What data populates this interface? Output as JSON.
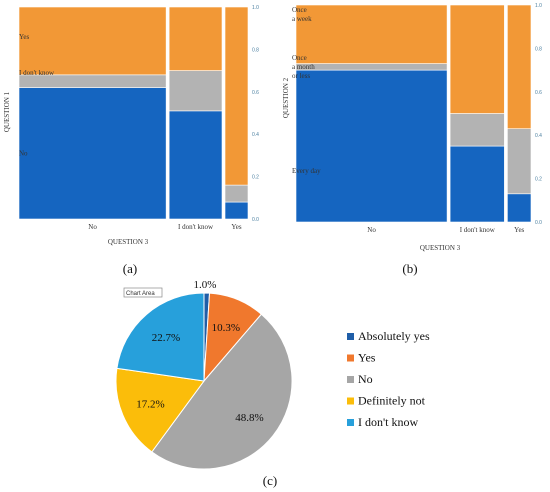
{
  "chart_data": [
    {
      "type": "mosaic",
      "panel_label": "(a)",
      "xlabel": "QUESTION 3",
      "ylabel": "QUESTION 1",
      "x_categories": [
        "No",
        "I don't know",
        "Yes"
      ],
      "column_widths": [
        0.64,
        0.23,
        0.1
      ],
      "y_categories": [
        "No",
        "I don't know",
        "Yes"
      ],
      "y_category_labels": [
        "No",
        "I don't know",
        "Yes"
      ],
      "series": [
        {
          "name": "No",
          "values": [
            0.62,
            0.51,
            0.08
          ]
        },
        {
          "name": "I don't know",
          "values": [
            0.06,
            0.19,
            0.08
          ]
        },
        {
          "name": "Yes",
          "values": [
            0.32,
            0.3,
            0.84
          ]
        }
      ],
      "ylim": [
        0,
        1
      ],
      "yticks": [
        "0.0",
        "0.2",
        "0.4",
        "0.6",
        "0.8",
        "1.0"
      ],
      "colors": [
        "#1565c0",
        "#b3b3b3",
        "#f29836"
      ]
    },
    {
      "type": "mosaic",
      "panel_label": "(b)",
      "xlabel": "QUESTION 3",
      "ylabel": "QUESTION 2",
      "x_categories": [
        "No",
        "I don't know",
        "Yes"
      ],
      "column_widths": [
        0.64,
        0.23,
        0.1
      ],
      "y_categories": [
        "Every day",
        "Once a month or less",
        "Once a week"
      ],
      "y_category_labels": [
        "Every day",
        "Once\na month\nor less",
        "Once\na week"
      ],
      "series": [
        {
          "name": "Every day",
          "values": [
            0.7,
            0.35,
            0.13
          ]
        },
        {
          "name": "Once a month or less",
          "values": [
            0.03,
            0.15,
            0.3
          ]
        },
        {
          "name": "Once a week",
          "values": [
            0.27,
            0.5,
            0.57
          ]
        }
      ],
      "ylim": [
        0,
        1
      ],
      "yticks": [
        "0.0",
        "0.2",
        "0.4",
        "0.6",
        "0.8",
        "1.0"
      ],
      "colors": [
        "#1565c0",
        "#b3b3b3",
        "#f29836"
      ]
    },
    {
      "type": "pie",
      "panel_label": "(c)",
      "chart_area_tag": "Chart Area",
      "labels": [
        "Absolutely yes",
        "Yes",
        "No",
        "Definitely not",
        "I don't know"
      ],
      "values": [
        1.0,
        10.3,
        48.8,
        17.2,
        22.7
      ],
      "value_labels": [
        "1.0%",
        "10.3%",
        "48.8%",
        "17.2%",
        "22.7%"
      ],
      "colors": [
        "#1f5ea8",
        "#f0782d",
        "#a6a6a6",
        "#fbbd0a",
        "#27a0db"
      ],
      "legend_position": "right"
    }
  ]
}
